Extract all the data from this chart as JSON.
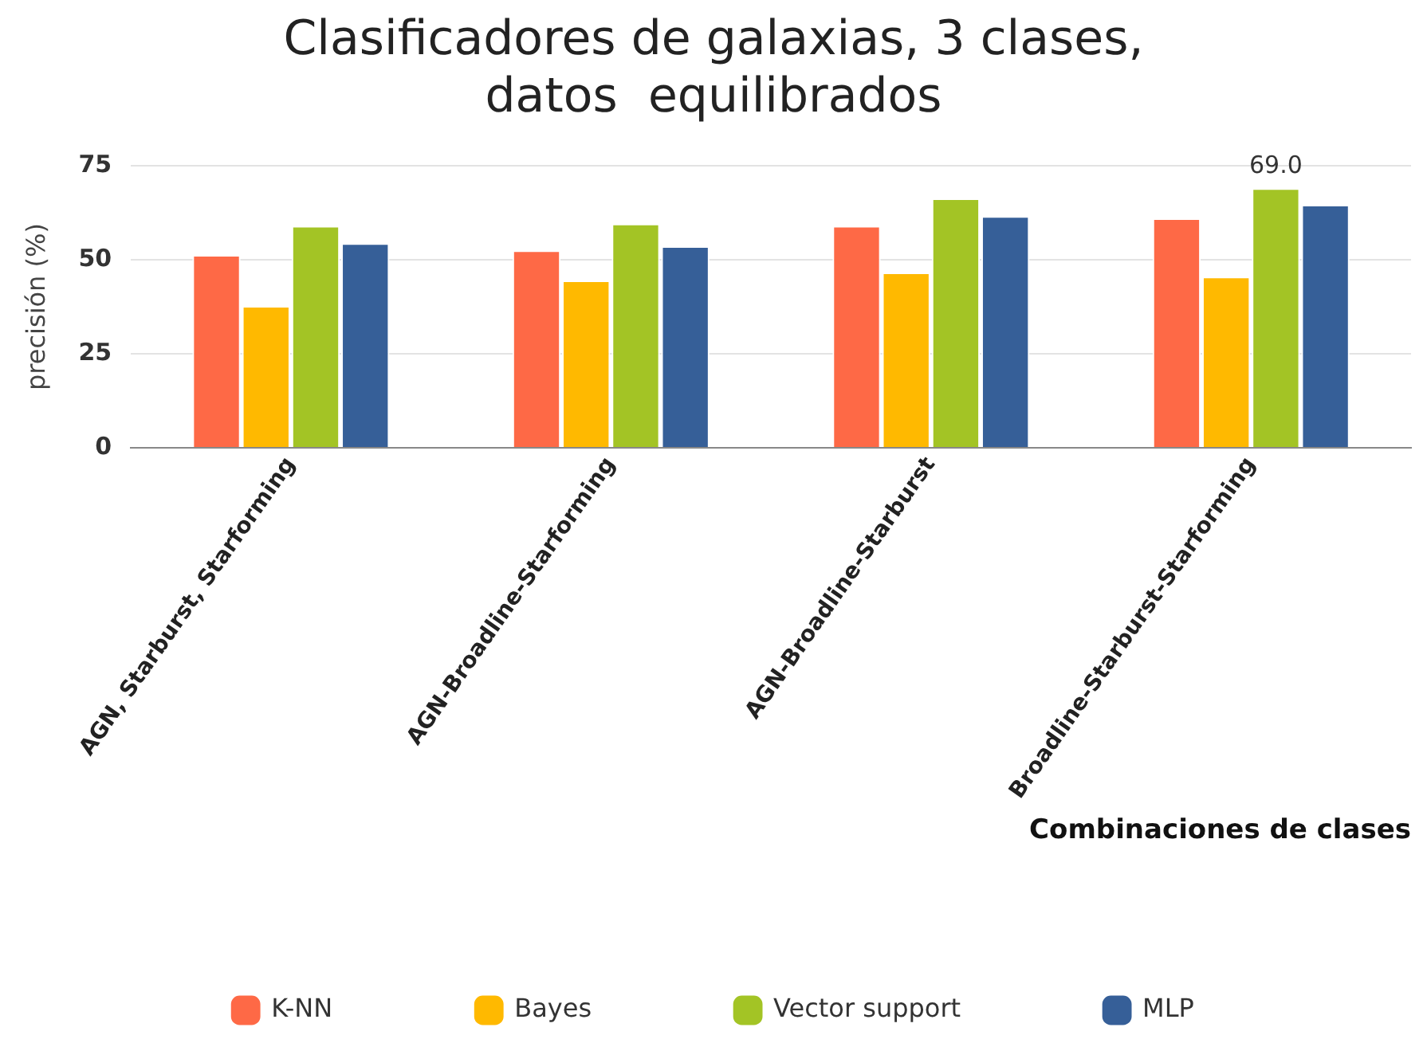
{
  "chart_data": {
    "type": "bar",
    "title": "Clasificadores de galaxias, 3 clases, datos  equilibrados",
    "xlabel": "Combinaciones de clases",
    "ylabel": "precisión (%)",
    "categories": [
      "AGN, Starburst, Starforming",
      "AGN-Broadline-Starforming",
      "AGN-Broadline-Starburst",
      "Broadline-Starburst-Starforming"
    ],
    "series": [
      {
        "name": "K-NN",
        "color": "#fe6946",
        "values": [
          51.3,
          52.5,
          59.0,
          61.0
        ]
      },
      {
        "name": "Bayes",
        "color": "#ffb900",
        "values": [
          37.7,
          44.5,
          46.6,
          45.5
        ]
      },
      {
        "name": "Vector support",
        "color": "#a3c425",
        "values": [
          59.0,
          59.6,
          66.3,
          69.0
        ],
        "value_labels": [
          null,
          null,
          null,
          "69.0"
        ]
      },
      {
        "name": "MLP",
        "color": "#365f98",
        "values": [
          54.4,
          53.6,
          61.6,
          64.6
        ]
      }
    ],
    "ylim": [
      0,
      75
    ],
    "yticks": [
      0,
      25,
      50,
      75
    ],
    "grid": "y",
    "legend": "bottom"
  }
}
